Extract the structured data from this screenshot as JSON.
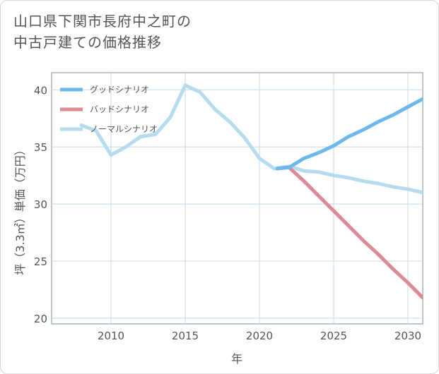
{
  "title_line1": "山口県下関市長府中之町の",
  "title_line2": "中古戸建ての価格推移",
  "chart_data": {
    "type": "line",
    "xlabel": "年",
    "ylabel": "坪（3.3㎡）単価（万円）",
    "xlim": [
      2006,
      2031
    ],
    "ylim": [
      19.5,
      41.5
    ],
    "xticks": [
      2010,
      2015,
      2020,
      2025,
      2030
    ],
    "yticks": [
      20,
      25,
      30,
      35,
      40
    ],
    "grid": true,
    "legend_position": "top-left",
    "series": [
      {
        "name": "グッドシナリオ",
        "color": "#6cb8ea",
        "points": [
          [
            2021.2,
            33.1
          ],
          [
            2022,
            33.2
          ],
          [
            2023,
            34.0
          ],
          [
            2024,
            34.5
          ],
          [
            2025,
            35.1
          ],
          [
            2026,
            35.9
          ],
          [
            2027,
            36.5
          ],
          [
            2028,
            37.2
          ],
          [
            2029,
            37.8
          ],
          [
            2030,
            38.5
          ],
          [
            2031,
            39.2
          ]
        ]
      },
      {
        "name": "バッドシナリオ",
        "color": "#dc8a93",
        "points": [
          [
            2021.2,
            33.1
          ],
          [
            2022,
            33.2
          ],
          [
            2023,
            32.0
          ],
          [
            2024,
            30.7
          ],
          [
            2025,
            29.4
          ],
          [
            2026,
            28.1
          ],
          [
            2027,
            26.8
          ],
          [
            2028,
            25.6
          ],
          [
            2029,
            24.3
          ],
          [
            2030,
            23.1
          ],
          [
            2031,
            21.8
          ]
        ]
      },
      {
        "name": "ノーマルシナリオ",
        "color": "#b5dcee",
        "points": [
          [
            2008,
            36.9
          ],
          [
            2009,
            36.4
          ],
          [
            2010,
            34.3
          ],
          [
            2011,
            35.0
          ],
          [
            2012,
            35.9
          ],
          [
            2013,
            36.1
          ],
          [
            2014,
            37.6
          ],
          [
            2015,
            40.4
          ],
          [
            2016,
            39.8
          ],
          [
            2017,
            38.3
          ],
          [
            2018,
            37.2
          ],
          [
            2019,
            35.8
          ],
          [
            2020,
            34.0
          ],
          [
            2021,
            33.1
          ],
          [
            2022,
            33.3
          ],
          [
            2023,
            32.9
          ],
          [
            2024,
            32.8
          ],
          [
            2025,
            32.5
          ],
          [
            2026,
            32.3
          ],
          [
            2027,
            32.0
          ],
          [
            2028,
            31.8
          ],
          [
            2029,
            31.5
          ],
          [
            2030,
            31.3
          ],
          [
            2031,
            31.0
          ]
        ]
      }
    ]
  }
}
